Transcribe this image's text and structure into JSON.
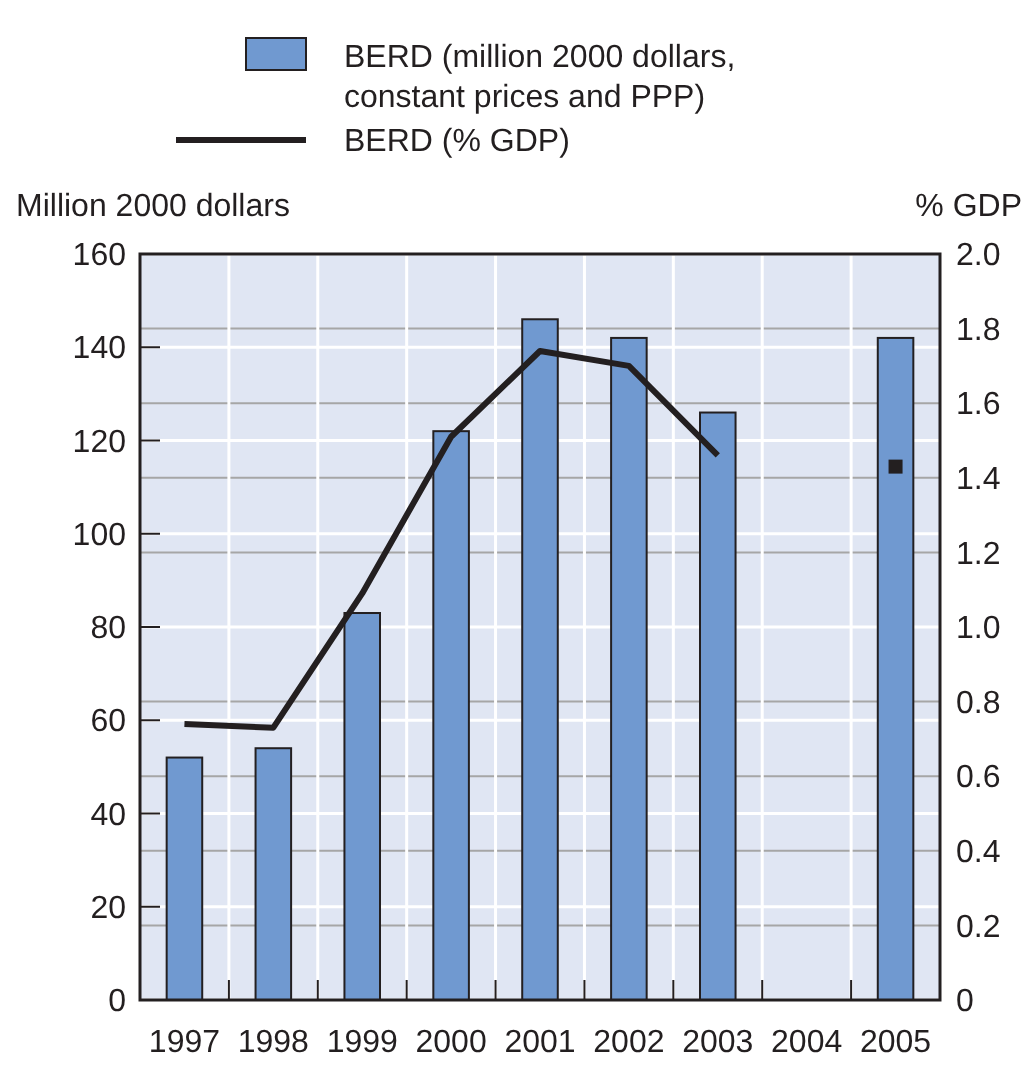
{
  "chart_data": {
    "type": "bar",
    "ylabel": "Million 2000 dollars",
    "y2label": "% GDP",
    "categories": [
      "1997",
      "1998",
      "1999",
      "2000",
      "2001",
      "2002",
      "2003",
      "2004",
      "2005"
    ],
    "series": [
      {
        "name": "BERD (million 2000 dollars, constant prices and PPP)",
        "color": "#7099d0",
        "values": [
          52,
          54,
          83,
          122,
          146,
          142,
          126,
          null,
          142
        ]
      },
      {
        "name": "BERD (% GDP)",
        "type": "line",
        "axis": "y2",
        "color": "#231f20",
        "values": [
          0.74,
          0.73,
          1.09,
          1.51,
          1.74,
          1.7,
          1.46,
          null,
          1.43
        ]
      }
    ],
    "ylim": [
      0,
      160
    ],
    "yticks": [
      0,
      20,
      40,
      60,
      80,
      100,
      120,
      140,
      160
    ],
    "y2lim": [
      0,
      2.0
    ],
    "y2ticks": [
      {
        "value": 0,
        "label": "0"
      },
      {
        "value": 0.2,
        "label": "0.2"
      },
      {
        "value": 0.4,
        "label": "0.4"
      },
      {
        "value": 0.6,
        "label": "0.6"
      },
      {
        "value": 0.8,
        "label": "0.8"
      },
      {
        "value": 1.0,
        "label": "1.0"
      },
      {
        "value": 1.2,
        "label": "1.2"
      },
      {
        "value": 1.4,
        "label": "1.4"
      },
      {
        "value": 1.6,
        "label": "1.6"
      },
      {
        "value": 1.8,
        "label": "1.8"
      },
      {
        "value": 2.0,
        "label": "2.0"
      }
    ],
    "grid": true,
    "legend": "top",
    "line_style": "solid"
  }
}
